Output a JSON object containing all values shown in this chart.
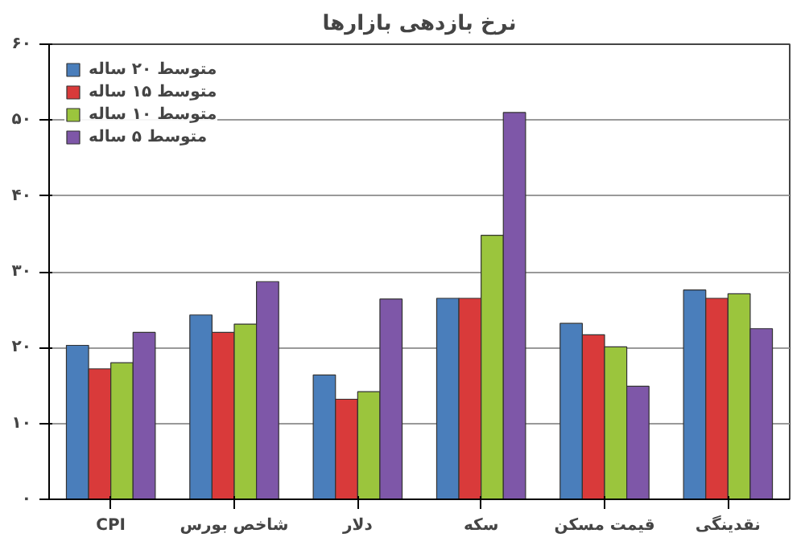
{
  "chart_data": {
    "type": "bar",
    "title": "نرخ بازدهی بازارها",
    "categories": [
      "CPI",
      "شاخص بورس",
      "دلار",
      "سکه",
      "قیمت مسکن",
      "نقدینگی"
    ],
    "series": [
      {
        "name": "متوسط ۲۰ ساله",
        "color": "#4a7ebb",
        "values": [
          20.3,
          24.3,
          16.4,
          26.5,
          23.2,
          27.6
        ]
      },
      {
        "name": "متوسط ۱۵ ساله",
        "color": "#d93a3a",
        "values": [
          17.2,
          22.0,
          13.2,
          26.5,
          21.7,
          26.5
        ]
      },
      {
        "name": "متوسط ۱۰ ساله",
        "color": "#9bc53d",
        "values": [
          18.0,
          23.1,
          14.2,
          34.8,
          20.1,
          27.1
        ]
      },
      {
        "name": "متوسط ۵ ساله",
        "color": "#7e57a8",
        "values": [
          22.0,
          28.7,
          26.4,
          51.0,
          14.9,
          22.5
        ]
      }
    ],
    "ylim": [
      0,
      60
    ],
    "yticks": [
      {
        "value": 0,
        "label": "۰"
      },
      {
        "value": 10,
        "label": "۱۰"
      },
      {
        "value": 20,
        "label": "۲۰"
      },
      {
        "value": 30,
        "label": "۳۰"
      },
      {
        "value": 40,
        "label": "۴۰"
      },
      {
        "value": 50,
        "label": "۵۰"
      },
      {
        "value": 60,
        "label": "۶۰"
      }
    ],
    "grid": "y",
    "legend": "top left"
  }
}
